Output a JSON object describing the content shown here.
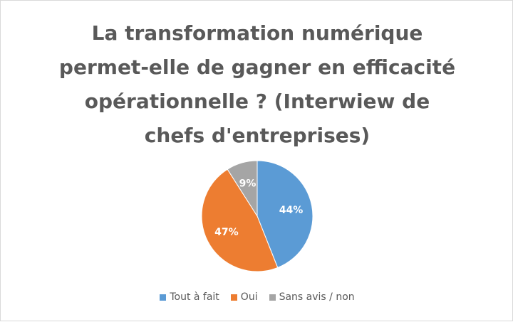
{
  "chart_data": {
    "type": "pie",
    "title_lines": [
      "La transformation numérique",
      "permet-elle de gagner en efficacité",
      "opérationnelle ? (Interwiew de",
      "chefs d'entreprises)"
    ],
    "slices": [
      {
        "name": "Tout à fait",
        "value": 44,
        "label": "44%",
        "color": "#5b9bd5"
      },
      {
        "name": "Oui",
        "value": 47,
        "label": "47%",
        "color": "#ed7d31"
      },
      {
        "name": "Sans avis / non",
        "value": 9,
        "label": "9%",
        "color": "#a5a5a5"
      }
    ],
    "legend_position": "bottom"
  }
}
